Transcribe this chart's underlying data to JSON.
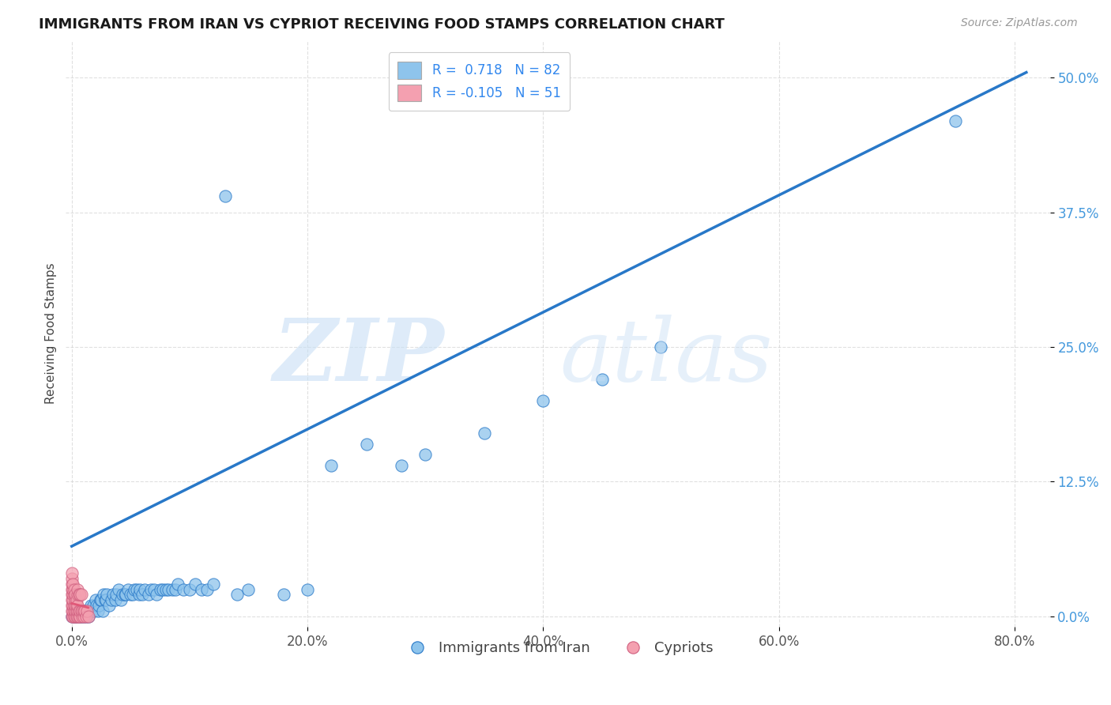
{
  "title": "IMMIGRANTS FROM IRAN VS CYPRIOT RECEIVING FOOD STAMPS CORRELATION CHART",
  "source": "Source: ZipAtlas.com",
  "ylabel": "Receiving Food Stamps",
  "xticklabels": [
    "0.0%",
    "20.0%",
    "40.0%",
    "60.0%",
    "80.0%"
  ],
  "yticklabels": [
    "0.0%",
    "12.5%",
    "25.0%",
    "37.5%",
    "50.0%"
  ],
  "xticks": [
    0.0,
    0.2,
    0.4,
    0.6,
    0.8
  ],
  "yticks": [
    0.0,
    0.125,
    0.25,
    0.375,
    0.5
  ],
  "xlim": [
    -0.005,
    0.83
  ],
  "ylim": [
    -0.01,
    0.535
  ],
  "color_blue": "#8EC4EC",
  "color_pink": "#F4A0B0",
  "trend_color_blue": "#2878C8",
  "trend_color_pink": "#E05878",
  "background_color": "#FFFFFF",
  "grid_color": "#CCCCCC",
  "iran_x": [
    0.002,
    0.003,
    0.004,
    0.005,
    0.006,
    0.007,
    0.008,
    0.009,
    0.01,
    0.011,
    0.012,
    0.013,
    0.014,
    0.015,
    0.016,
    0.017,
    0.018,
    0.019,
    0.02,
    0.021,
    0.022,
    0.023,
    0.024,
    0.025,
    0.026,
    0.027,
    0.028,
    0.029,
    0.03,
    0.032,
    0.034,
    0.035,
    0.037,
    0.038,
    0.04,
    0.042,
    0.043,
    0.045,
    0.046,
    0.048,
    0.05,
    0.052,
    0.053,
    0.055,
    0.057,
    0.058,
    0.06,
    0.062,
    0.065,
    0.067,
    0.07,
    0.072,
    0.075,
    0.077,
    0.08,
    0.082,
    0.085,
    0.088,
    0.09,
    0.095,
    0.1,
    0.105,
    0.11,
    0.115,
    0.12,
    0.13,
    0.14,
    0.15,
    0.18,
    0.2,
    0.22,
    0.25,
    0.28,
    0.3,
    0.35,
    0.4,
    0.45,
    0.5,
    0.75,
    0.0,
    0.003,
    0.01
  ],
  "iran_y": [
    0.0,
    0.0,
    0.005,
    0.0,
    0.005,
    0.0,
    0.0,
    0.005,
    0.0,
    0.005,
    0.0,
    0.005,
    0.0,
    0.005,
    0.01,
    0.005,
    0.01,
    0.005,
    0.015,
    0.01,
    0.005,
    0.01,
    0.015,
    0.015,
    0.005,
    0.02,
    0.015,
    0.015,
    0.02,
    0.01,
    0.015,
    0.02,
    0.015,
    0.02,
    0.025,
    0.015,
    0.02,
    0.02,
    0.02,
    0.025,
    0.02,
    0.02,
    0.025,
    0.025,
    0.02,
    0.025,
    0.02,
    0.025,
    0.02,
    0.025,
    0.025,
    0.02,
    0.025,
    0.025,
    0.025,
    0.025,
    0.025,
    0.025,
    0.03,
    0.025,
    0.025,
    0.03,
    0.025,
    0.025,
    0.03,
    0.39,
    0.02,
    0.025,
    0.02,
    0.025,
    0.14,
    0.16,
    0.14,
    0.15,
    0.17,
    0.2,
    0.22,
    0.25,
    0.46,
    0.0,
    0.0,
    0.005
  ],
  "cypriot_x": [
    0.0,
    0.0,
    0.0,
    0.0,
    0.0,
    0.0,
    0.0,
    0.0,
    0.0,
    0.001,
    0.001,
    0.001,
    0.001,
    0.001,
    0.001,
    0.001,
    0.002,
    0.002,
    0.002,
    0.002,
    0.002,
    0.003,
    0.003,
    0.003,
    0.003,
    0.003,
    0.004,
    0.004,
    0.004,
    0.004,
    0.005,
    0.005,
    0.005,
    0.005,
    0.005,
    0.006,
    0.006,
    0.006,
    0.007,
    0.007,
    0.007,
    0.008,
    0.008,
    0.009,
    0.009,
    0.01,
    0.01,
    0.011,
    0.012,
    0.013,
    0.014
  ],
  "cypriot_y": [
    0.0,
    0.005,
    0.01,
    0.015,
    0.02,
    0.025,
    0.03,
    0.035,
    0.04,
    0.0,
    0.005,
    0.01,
    0.015,
    0.02,
    0.025,
    0.03,
    0.0,
    0.005,
    0.01,
    0.02,
    0.025,
    0.0,
    0.005,
    0.01,
    0.015,
    0.02,
    0.0,
    0.005,
    0.01,
    0.015,
    0.0,
    0.005,
    0.01,
    0.02,
    0.025,
    0.0,
    0.005,
    0.02,
    0.0,
    0.005,
    0.02,
    0.005,
    0.02,
    0.0,
    0.005,
    0.0,
    0.005,
    0.005,
    0.0,
    0.005,
    0.0
  ],
  "trend_iran_x0": 0.0,
  "trend_iran_x1": 0.81,
  "trend_iran_y0": 0.065,
  "trend_iran_y1": 0.505,
  "trend_cyp_x0": 0.0,
  "trend_cyp_x1": 0.014,
  "trend_cyp_y0": 0.012,
  "trend_cyp_y1": 0.008
}
